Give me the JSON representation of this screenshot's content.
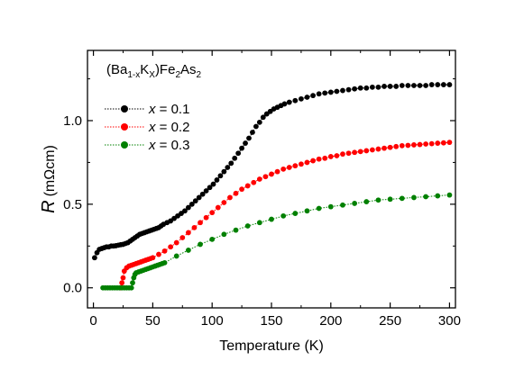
{
  "chart_data": {
    "type": "scatter",
    "title": "(Ba1-xKx)Fe2As2",
    "title_parts": {
      "base1": "(Ba",
      "sub1": "1-x",
      "mid": "K",
      "sub2": "X",
      "base2": ")Fe",
      "sub3": "2",
      "base3": "As",
      "sub4": "2"
    },
    "xlabel": "Temperature (K)",
    "ylabel_var": "R",
    "ylabel_unit": "(mΩcm)",
    "xlim": [
      -5,
      305
    ],
    "ylim": [
      -0.12,
      1.42
    ],
    "xticks": [
      0,
      50,
      100,
      150,
      200,
      250,
      300
    ],
    "yticks": [
      0.0,
      0.5,
      1.0
    ],
    "ytick_labels": [
      "0.0",
      "0.5",
      "1.0"
    ],
    "grid": false,
    "legend_position": "top-left",
    "series": [
      {
        "name": "x = 0.1",
        "legend_var": "x",
        "legend_rest": " = 0.1",
        "color": "#000000",
        "x": [
          1,
          3,
          5,
          7,
          9,
          11,
          13,
          15,
          17,
          19,
          21,
          23,
          25,
          27,
          29,
          31,
          33,
          35,
          37,
          39,
          41,
          43,
          45,
          47,
          49,
          51,
          53,
          55,
          57,
          59,
          62,
          65,
          68,
          71,
          74,
          77,
          80,
          83,
          86,
          89,
          92,
          95,
          98,
          101,
          104,
          107,
          110,
          113,
          116,
          119,
          122,
          125,
          128,
          131,
          134,
          137,
          140,
          143,
          146,
          149,
          152,
          155,
          158,
          161,
          165,
          170,
          175,
          180,
          185,
          190,
          195,
          200,
          205,
          210,
          215,
          220,
          225,
          230,
          235,
          240,
          245,
          250,
          255,
          260,
          265,
          270,
          275,
          280,
          285,
          290,
          295,
          300
        ],
        "y": [
          0.18,
          0.21,
          0.23,
          0.235,
          0.24,
          0.245,
          0.245,
          0.25,
          0.25,
          0.252,
          0.255,
          0.258,
          0.26,
          0.265,
          0.27,
          0.28,
          0.29,
          0.3,
          0.31,
          0.32,
          0.325,
          0.33,
          0.335,
          0.34,
          0.345,
          0.35,
          0.355,
          0.36,
          0.37,
          0.38,
          0.39,
          0.4,
          0.415,
          0.43,
          0.445,
          0.46,
          0.48,
          0.5,
          0.52,
          0.54,
          0.56,
          0.58,
          0.6,
          0.62,
          0.645,
          0.67,
          0.695,
          0.72,
          0.745,
          0.775,
          0.805,
          0.835,
          0.865,
          0.895,
          0.93,
          0.965,
          0.99,
          1.02,
          1.04,
          1.055,
          1.07,
          1.08,
          1.09,
          1.1,
          1.11,
          1.12,
          1.13,
          1.14,
          1.15,
          1.16,
          1.165,
          1.17,
          1.175,
          1.18,
          1.185,
          1.19,
          1.195,
          1.195,
          1.2,
          1.2,
          1.205,
          1.205,
          1.205,
          1.21,
          1.21,
          1.21,
          1.21,
          1.21,
          1.215,
          1.215,
          1.215,
          1.215
        ]
      },
      {
        "name": "x = 0.2",
        "legend_var": "x",
        "legend_rest": " = 0.2",
        "color": "#ff0000",
        "x": [
          23,
          24,
          25,
          26,
          28,
          30,
          32,
          34,
          36,
          38,
          40,
          42,
          44,
          46,
          48,
          50,
          55,
          60,
          65,
          70,
          75,
          80,
          85,
          90,
          95,
          100,
          105,
          110,
          115,
          120,
          125,
          130,
          135,
          140,
          145,
          150,
          155,
          160,
          165,
          170,
          175,
          180,
          185,
          190,
          195,
          200,
          205,
          210,
          215,
          220,
          225,
          230,
          235,
          240,
          245,
          250,
          255,
          260,
          265,
          270,
          275,
          280,
          285,
          290,
          295,
          300
        ],
        "y": [
          0.0,
          0.03,
          0.06,
          0.1,
          0.12,
          0.13,
          0.135,
          0.14,
          0.145,
          0.15,
          0.155,
          0.16,
          0.165,
          0.17,
          0.175,
          0.18,
          0.2,
          0.22,
          0.245,
          0.27,
          0.3,
          0.33,
          0.36,
          0.39,
          0.42,
          0.45,
          0.48,
          0.51,
          0.54,
          0.565,
          0.59,
          0.61,
          0.63,
          0.65,
          0.665,
          0.68,
          0.695,
          0.71,
          0.72,
          0.73,
          0.74,
          0.75,
          0.76,
          0.77,
          0.775,
          0.785,
          0.79,
          0.8,
          0.805,
          0.81,
          0.815,
          0.82,
          0.825,
          0.83,
          0.835,
          0.84,
          0.845,
          0.85,
          0.852,
          0.855,
          0.857,
          0.86,
          0.862,
          0.865,
          0.867,
          0.87
        ]
      },
      {
        "name": "x = 0.3",
        "legend_var": "x",
        "legend_rest": " = 0.3",
        "color": "#008000",
        "x": [
          8,
          10,
          12,
          14,
          16,
          18,
          20,
          22,
          24,
          26,
          28,
          30,
          32,
          33,
          34,
          35,
          36,
          38,
          40,
          42,
          44,
          46,
          48,
          50,
          52,
          54,
          56,
          58,
          60,
          70,
          80,
          90,
          100,
          110,
          120,
          130,
          140,
          150,
          160,
          170,
          180,
          190,
          200,
          210,
          220,
          230,
          240,
          250,
          260,
          270,
          280,
          290,
          300
        ],
        "y": [
          0.0,
          0.0,
          0.0,
          0.0,
          0.0,
          0.0,
          0.0,
          0.0,
          0.0,
          0.0,
          0.0,
          0.0,
          0.0,
          0.03,
          0.06,
          0.08,
          0.09,
          0.095,
          0.1,
          0.105,
          0.11,
          0.115,
          0.12,
          0.125,
          0.13,
          0.135,
          0.14,
          0.145,
          0.15,
          0.19,
          0.225,
          0.26,
          0.29,
          0.32,
          0.345,
          0.37,
          0.39,
          0.41,
          0.43,
          0.445,
          0.46,
          0.475,
          0.485,
          0.495,
          0.505,
          0.515,
          0.525,
          0.53,
          0.535,
          0.54,
          0.545,
          0.55,
          0.555
        ]
      }
    ]
  }
}
